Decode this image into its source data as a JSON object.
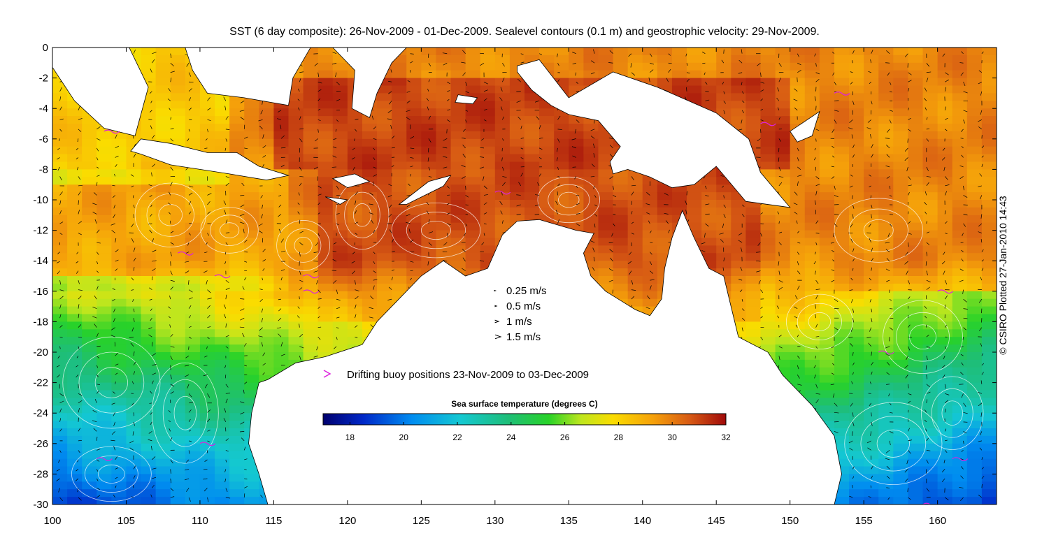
{
  "title": "SST (6 day composite): 26-Nov-2009 - 01-Dec-2009. Sealevel contours (0.1 m) and geostrophic velocity: 29-Nov-2009.",
  "credit": "© CSIRO Plotted 27-Jan-2010 14:43",
  "map": {
    "lon_range": [
      100,
      164
    ],
    "lat_range": [
      -30,
      0
    ],
    "x_ticks": [
      100,
      105,
      110,
      115,
      120,
      125,
      130,
      135,
      140,
      145,
      150,
      155,
      160
    ],
    "y_ticks": [
      0,
      -2,
      -4,
      -6,
      -8,
      -10,
      -12,
      -14,
      -16,
      -18,
      -20,
      -22,
      -24,
      -26,
      -28,
      -30
    ],
    "land_color": "#ffffff",
    "coast_color": "#000000",
    "contour_color": "#ffffff",
    "buoy_color": "#dd22dd"
  },
  "legend": {
    "speeds": [
      {
        "label": "0.25 m/s",
        "value": 0.25
      },
      {
        "label": "0.5 m/s",
        "value": 0.5
      },
      {
        "label": "1 m/s",
        "value": 1
      },
      {
        "label": "1.5 m/s",
        "value": 1.5
      }
    ],
    "buoy_label": "Drifting buoy positions 23-Nov-2009 to 03-Dec-2009"
  },
  "colorbar": {
    "title": "Sea surface temperature (degrees C)",
    "range": [
      17,
      32
    ],
    "ticks": [
      18,
      20,
      22,
      24,
      26,
      28,
      30,
      32
    ]
  }
}
